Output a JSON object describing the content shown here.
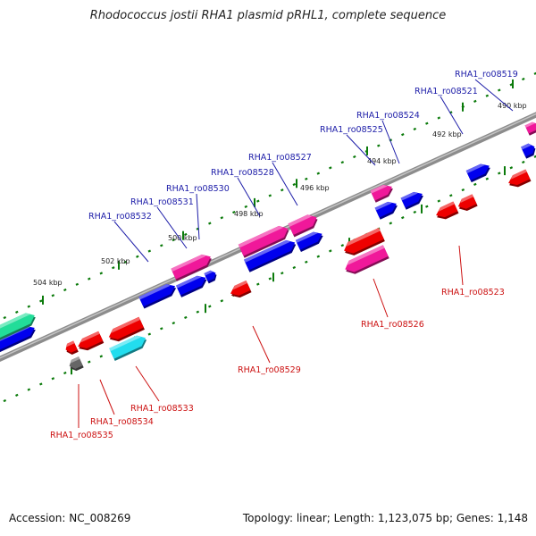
{
  "title": "Rhodococcus jostii RHA1 plasmid pRHL1, complete sequence",
  "footer": {
    "accession": "Accession: NC_008269",
    "topology": "Topology: linear; Length: 1,123,075 bp; Genes: 1,148"
  },
  "colors": {
    "blue": "#0000ee",
    "red": "#ee0000",
    "pink": "#f0189a",
    "cyan": "#22ddee",
    "green": "#22dd99",
    "gray": "#666666",
    "tick": "#0a7a0a",
    "label_top": "#1c1ca8",
    "label_bottom": "#cc1111"
  },
  "kbp_labels": [
    "490 kbp",
    "492 kbp",
    "494 kbp",
    "496 kbp",
    "498 kbp",
    "500 kbp",
    "502 kbp",
    "504 kbp"
  ],
  "genes_top": [
    "RHA1_ro08519",
    "RHA1_ro08521",
    "RHA1_ro08524",
    "RHA1_ro08525",
    "RHA1_ro08527",
    "RHA1_ro08528",
    "RHA1_ro08530",
    "RHA1_ro08531",
    "RHA1_ro08532"
  ],
  "genes_bottom": [
    "RHA1_ro08523",
    "RHA1_ro08526",
    "RHA1_ro08529",
    "RHA1_ro08533",
    "RHA1_ro08534",
    "RHA1_ro08535"
  ]
}
